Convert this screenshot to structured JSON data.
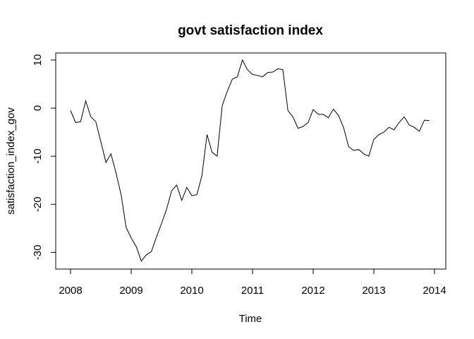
{
  "chart_data": {
    "type": "line",
    "title": "govt satisfaction index",
    "xlabel": "Time",
    "ylabel": "satisfaction_index_gov",
    "xlim": [
      2008,
      2014
    ],
    "ylim": [
      -32,
      10
    ],
    "x_ticks": [
      "2008",
      "2009",
      "2010",
      "2011",
      "2012",
      "2013",
      "2014"
    ],
    "y_ticks": [
      "-30",
      "-20",
      "-10",
      "0",
      "10"
    ],
    "grid": false,
    "legend": "none",
    "series": [
      {
        "x_start": 2008,
        "frequency": "monthly",
        "values": [
          -0.5,
          -3,
          -2.8,
          1.5,
          -1.8,
          -2.8,
          -7,
          -11.3,
          -9.5,
          -13.5,
          -18,
          -24.8,
          -27,
          -28.8,
          -31.8,
          -30.5,
          -29.8,
          -26.8,
          -24,
          -21,
          -17.2,
          -16,
          -19.2,
          -16.5,
          -18.2,
          -18,
          -14,
          -5.5,
          -9.2,
          -10,
          0.5,
          3.5,
          6,
          6.5,
          10,
          8,
          7,
          6.8,
          6.5,
          7.4,
          7.5,
          8.2,
          8,
          -0.5,
          -1.8,
          -4.2,
          -3.8,
          -3,
          -0.3,
          -1.3,
          -1.3,
          -2,
          -0.2,
          -1.5,
          -4,
          -8,
          -8.8,
          -8.6,
          -9.5,
          -10,
          -6.5,
          -5.5,
          -5,
          -4,
          -4.5,
          -3,
          -1.8,
          -3.5,
          -4,
          -4.8,
          -2.5,
          -2.6
        ]
      }
    ]
  }
}
